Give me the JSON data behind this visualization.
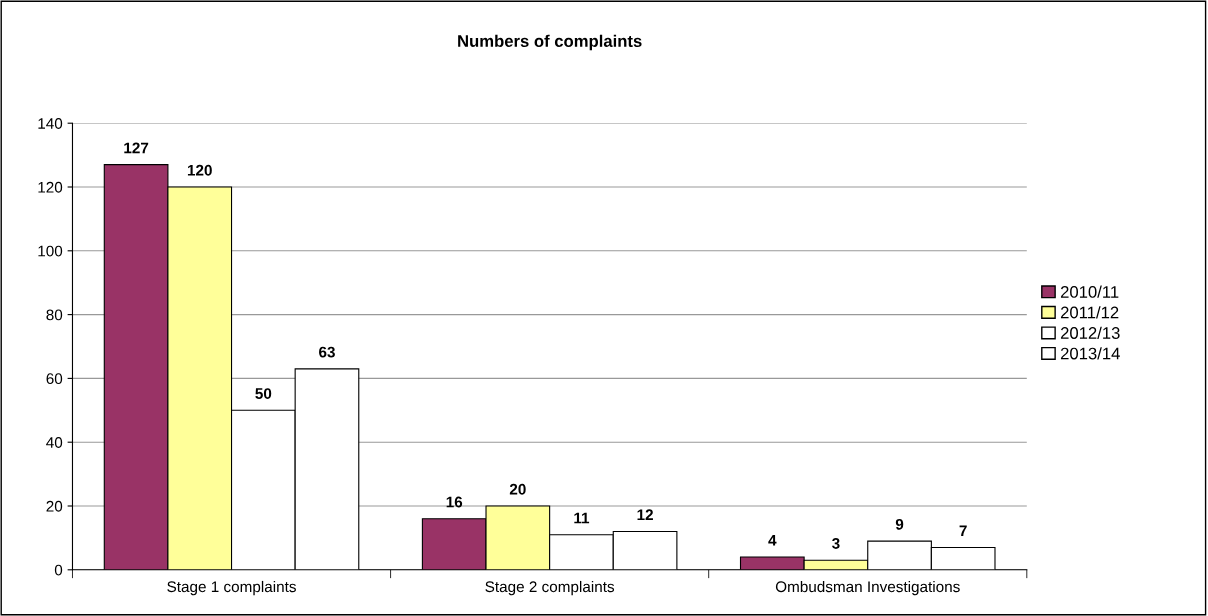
{
  "chart_data": {
    "type": "bar",
    "title": "Numbers of complaints",
    "categories": [
      "Stage 1 complaints",
      "Stage 2 complaints",
      "Ombudsman Investigations"
    ],
    "series": [
      {
        "name": "2010/11",
        "color": "#993366",
        "values": [
          127,
          16,
          4
        ]
      },
      {
        "name": "2011/12",
        "color": "#ffff99",
        "values": [
          120,
          20,
          3
        ]
      },
      {
        "name": "2012/13",
        "color": "#ffffff",
        "values": [
          50,
          11,
          9
        ]
      },
      {
        "name": "2013/14",
        "color": "#ffffff",
        "values": [
          63,
          12,
          7
        ]
      }
    ],
    "ylim": [
      0,
      140
    ],
    "yticks": [
      0,
      20,
      40,
      60,
      80,
      100,
      120,
      140
    ],
    "grid": "y",
    "legend": "right",
    "data_labels": true
  }
}
